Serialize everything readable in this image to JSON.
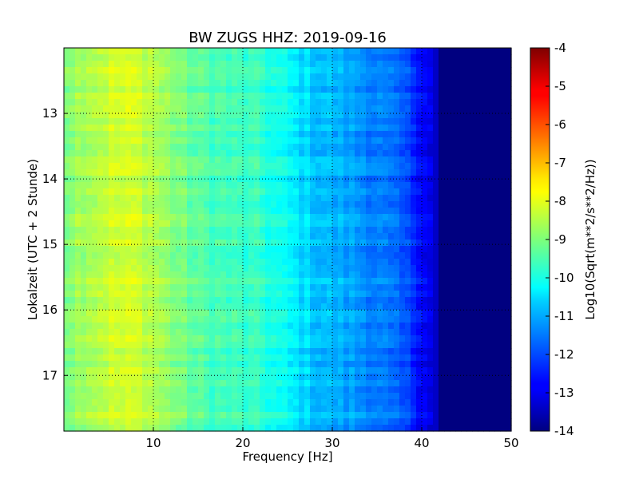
{
  "chart_data": {
    "type": "heatmap",
    "title": "BW ZUGS HHZ: 2019-09-16",
    "xlabel": "Frequency [Hz]",
    "ylabel": "Lokalzeit (UTC + 2 Stunde)",
    "xlim": [
      0,
      50
    ],
    "ylim": [
      17.85,
      12.0
    ],
    "x_ticks": [
      "10",
      "20",
      "30",
      "40",
      "50"
    ],
    "y_ticks": [
      "13",
      "14",
      "15",
      "16",
      "17"
    ],
    "grid": true,
    "colorbar": {
      "label": "Log10(Sqrt(m**2/s**2/Hz))",
      "range": [
        -14,
        -4
      ],
      "ticks": [
        "-4",
        "-5",
        "-6",
        "-7",
        "-8",
        "-9",
        "-10",
        "-11",
        "-12",
        "-13",
        "-14"
      ],
      "colormap": "jet"
    },
    "spectrum_profile": {
      "frequency_hz": [
        0,
        2,
        5,
        8,
        10,
        12,
        15,
        18,
        20,
        22,
        25,
        28,
        30,
        33,
        35,
        38,
        40,
        41.5,
        42,
        45,
        50
      ],
      "log10_amplitude": [
        -9.0,
        -8.6,
        -8.3,
        -8.2,
        -8.5,
        -8.9,
        -9.4,
        -9.6,
        -9.7,
        -9.8,
        -10.3,
        -10.8,
        -11.0,
        -11.3,
        -11.5,
        -12.0,
        -12.6,
        -13.2,
        -14.0,
        -14.0,
        -14.0
      ]
    }
  }
}
